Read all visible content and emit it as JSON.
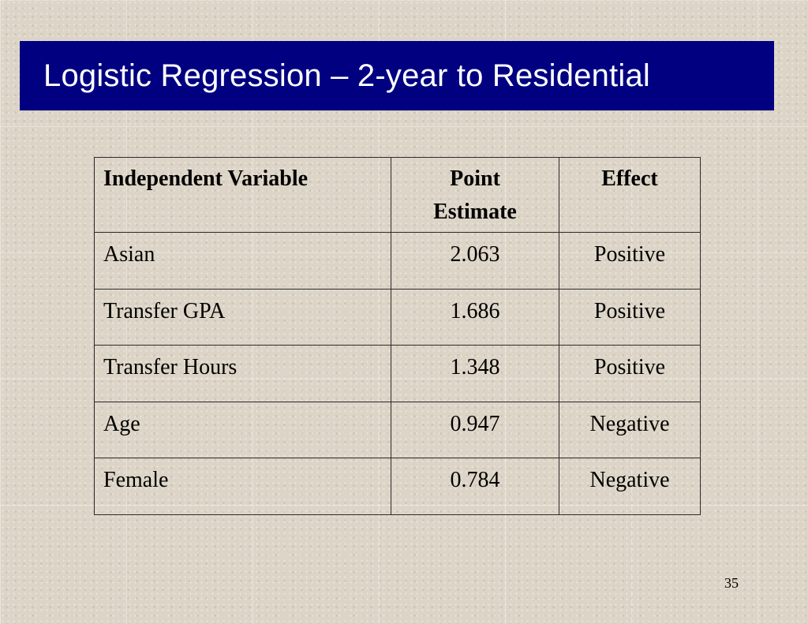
{
  "slide": {
    "title": "Logistic Regression – 2-year to Residential",
    "page_number": "35"
  },
  "table": {
    "headers": {
      "variable": "Independent Variable",
      "estimate_line1": "Point",
      "estimate_line2": "Estimate",
      "effect": "Effect"
    },
    "rows": [
      {
        "variable": "Asian",
        "estimate": "2.063",
        "effect": "Positive"
      },
      {
        "variable": "Transfer GPA",
        "estimate": "1.686",
        "effect": "Positive"
      },
      {
        "variable": "Transfer Hours",
        "estimate": "1.348",
        "effect": "Positive"
      },
      {
        "variable": "Age",
        "estimate": "0.947",
        "effect": "Negative"
      },
      {
        "variable": "Female",
        "estimate": "0.784",
        "effect": "Negative"
      }
    ]
  },
  "colors": {
    "title_bar": "#000080",
    "title_text": "#ffffff",
    "background": "#dcd4c6"
  }
}
